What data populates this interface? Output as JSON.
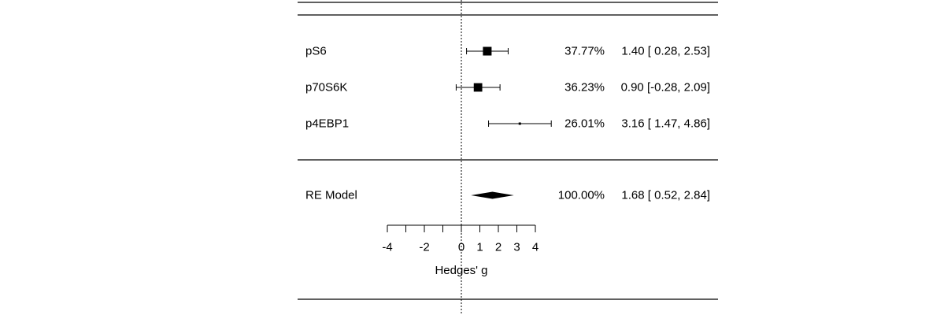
{
  "chart_data": {
    "type": "forest",
    "xlabel": "Hedges' g",
    "xticks": [
      -4,
      -2,
      0,
      1,
      2,
      3,
      4
    ],
    "xlim": [
      -4,
      4
    ],
    "reference_line": 0,
    "studies": [
      {
        "label": "pS6",
        "estimate": 1.4,
        "ci_low": 0.28,
        "ci_high": 2.53,
        "weight": 37.77,
        "weight_text": "37.77%",
        "ci_text": "1.40 [ 0.28, 2.53]"
      },
      {
        "label": "p70S6K",
        "estimate": 0.9,
        "ci_low": -0.28,
        "ci_high": 2.09,
        "weight": 36.23,
        "weight_text": "36.23%",
        "ci_text": "0.90 [-0.28, 2.09]"
      },
      {
        "label": "p4EBP1",
        "estimate": 3.16,
        "ci_low": 1.47,
        "ci_high": 4.86,
        "weight": 26.01,
        "weight_text": "26.01%",
        "ci_text": "3.16 [ 1.47, 4.86]"
      }
    ],
    "summary": {
      "label": "RE Model",
      "estimate": 1.68,
      "ci_low": 0.52,
      "ci_high": 2.84,
      "weight_text": "100.00%",
      "ci_text": "1.68 [ 0.52, 2.84]"
    }
  }
}
